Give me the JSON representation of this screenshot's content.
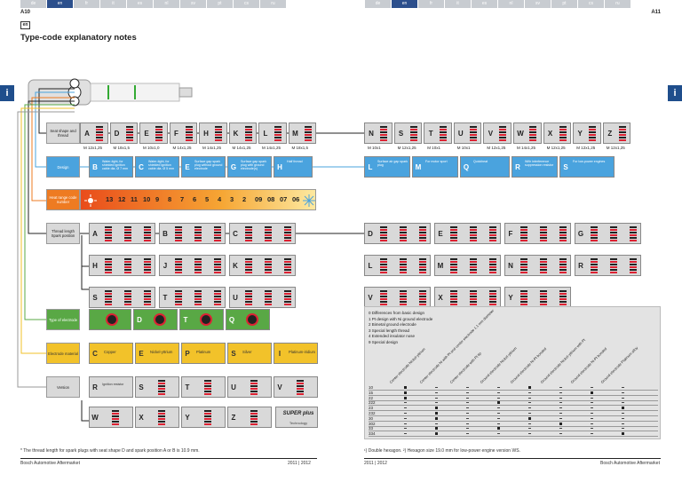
{
  "lang_tabs_left": [
    "de",
    "en",
    "fr",
    "it",
    "es",
    "nl",
    "sv",
    "pt",
    "cs",
    "ru"
  ],
  "lang_tabs_right": [
    "de",
    "en",
    "fr",
    "it",
    "es",
    "nl",
    "sv",
    "pt",
    "cs",
    "ru"
  ],
  "active_lang": "en",
  "page_left": "A10",
  "page_right": "A11",
  "lang_badge": "en",
  "title": "Type-code explanatory notes",
  "info_icon": "i",
  "categories": {
    "seat": "Seat shape and thread",
    "design": "Design",
    "heat": "Heat range code number",
    "thread_length": "Thread length Spark position",
    "electrode": "Type of electrode",
    "material": "Electrode material",
    "version": "Version"
  },
  "seat_left": [
    {
      "letter": "A",
      "thread": "M 12x1,25"
    },
    {
      "letter": "D",
      "thread": "M 18x1,5"
    },
    {
      "letter": "E",
      "thread": "M 10x1,0"
    },
    {
      "letter": "F",
      "thread": "M 14x1,25"
    },
    {
      "letter": "H",
      "thread": "M 14x1,25"
    },
    {
      "letter": "K",
      "thread": "M 14x1,25"
    },
    {
      "letter": "L",
      "thread": "M 14x1,25"
    },
    {
      "letter": "M",
      "thread": "M 18x1,5"
    }
  ],
  "seat_right": [
    {
      "letter": "N",
      "thread": "M 10x1"
    },
    {
      "letter": "S",
      "thread": "M 12x1,25"
    },
    {
      "letter": "T",
      "thread": "M 10x1"
    },
    {
      "letter": "U",
      "thread": "M 10x1"
    },
    {
      "letter": "V",
      "thread": "M 12x1,25"
    },
    {
      "letter": "W",
      "thread": "M 14x1,25"
    },
    {
      "letter": "X",
      "thread": "M 12x1,25"
    },
    {
      "letter": "Y",
      "thread": "M 12x1,25"
    },
    {
      "letter": "Z",
      "thread": "M 12x1,25"
    }
  ],
  "design_left": [
    {
      "letter": "B",
      "text": "Water-tight, for shielded ignition cable dia. Ø 7 mm"
    },
    {
      "letter": "C",
      "text": "Water-tight, for shielded ignition cable dia. Ø 5 mm"
    },
    {
      "letter": "E",
      "text": "Surface gap spark plug without ground electrode"
    },
    {
      "letter": "G",
      "text": "Surface gap spark plug with ground electrode(s)"
    },
    {
      "letter": "H",
      "text": "Half thread"
    }
  ],
  "design_right": [
    {
      "letter": "L",
      "text": "Surface air gap spark plug"
    },
    {
      "letter": "M",
      "text": "For motor sport"
    },
    {
      "letter": "Q",
      "text": "Quickheat"
    },
    {
      "letter": "R",
      "text": "With interference suppression resistor"
    },
    {
      "letter": "S",
      "text": "For low-power engines"
    }
  ],
  "heat_numbers": [
    "13",
    "12",
    "11",
    "10",
    "9",
    "8",
    "7",
    "6",
    "5",
    "4",
    "3",
    "2",
    "09",
    "08",
    "07",
    "06"
  ],
  "thread_left_rows": [
    [
      "A",
      "B",
      "C"
    ],
    [
      "H",
      "J",
      "K"
    ],
    [
      "S",
      "T",
      "U"
    ]
  ],
  "thread_right_rows": [
    [
      "D",
      "E",
      "F",
      "G"
    ],
    [
      "L",
      "M",
      "N",
      "R"
    ],
    [
      "V",
      "X",
      "Y"
    ]
  ],
  "electrode": [
    "D",
    "T",
    "Q"
  ],
  "material": [
    {
      "letter": "C",
      "text": "Copper"
    },
    {
      "letter": "E",
      "text": "Nickel-yttrium"
    },
    {
      "letter": "P",
      "text": "Platinum"
    },
    {
      "letter": "S",
      "text": "Silver"
    },
    {
      "letter": "I",
      "text": "Platinum-iridium"
    }
  ],
  "version_row1": [
    {
      "letter": "R",
      "text": "Ignition resistor"
    },
    {
      "letter": "S",
      "text": ""
    },
    {
      "letter": "T",
      "text": ""
    },
    {
      "letter": "U",
      "text": ""
    },
    {
      "letter": "V",
      "text": ""
    }
  ],
  "version_row2": [
    {
      "letter": "W",
      "text": ""
    },
    {
      "letter": "X",
      "text": ""
    },
    {
      "letter": "Y",
      "text": ""
    },
    {
      "letter": "Z",
      "text": ""
    }
  ],
  "super_plus": "SUPER plus",
  "super_plus_sub": "Technology",
  "legend_lines": [
    {
      "code": "0",
      "text": "Differences from basic design"
    },
    {
      "code": "1",
      "text": "Pt design with Ni ground electrode"
    },
    {
      "code": "2",
      "text": "Bimetal ground electrode"
    },
    {
      "code": "3",
      "text": "Special length thread"
    },
    {
      "code": "4",
      "text": "Extended insulator nose"
    },
    {
      "code": "9",
      "text": "Special design"
    }
  ],
  "legend_headers": [
    "Center electrode Nickel-yttrium",
    "Center electrode Ni with Pt and center electrode 1.1 mm diameter",
    "Center electrode with Pt tip",
    "Ground electrode Nickel-yttrium",
    "Ground electrode Ni-Pt bonded",
    "Ground electrode Nickel-yttrium with Pt",
    "Ground electrode Ni-Pt bonded",
    "Ground electrode Platinum alloy"
  ],
  "legend_rows": [
    "10",
    "15",
    "22",
    "222",
    "23",
    "232",
    "30",
    "302",
    "33",
    "334"
  ],
  "footnote_left": "* The thread length for spark plugs with seat shape D and spark position A or B is 10.9 mm.",
  "footnote_right": "¹) Double hexagon. ²) Hexagon size 19.0 mm for low-power engine version WS.",
  "footer_left_brand": "Bosch Automotive Aftermarket",
  "footer_left_year": "2011 | 2012",
  "footer_right_year": "2011 | 2012",
  "footer_right_brand": "Bosch Automotive Aftermarket",
  "colors": {
    "blue": "#4aa3de",
    "orange": "#ee7b22",
    "green": "#59a845",
    "yellow": "#f2c22a",
    "navy": "#2c4f8c"
  }
}
